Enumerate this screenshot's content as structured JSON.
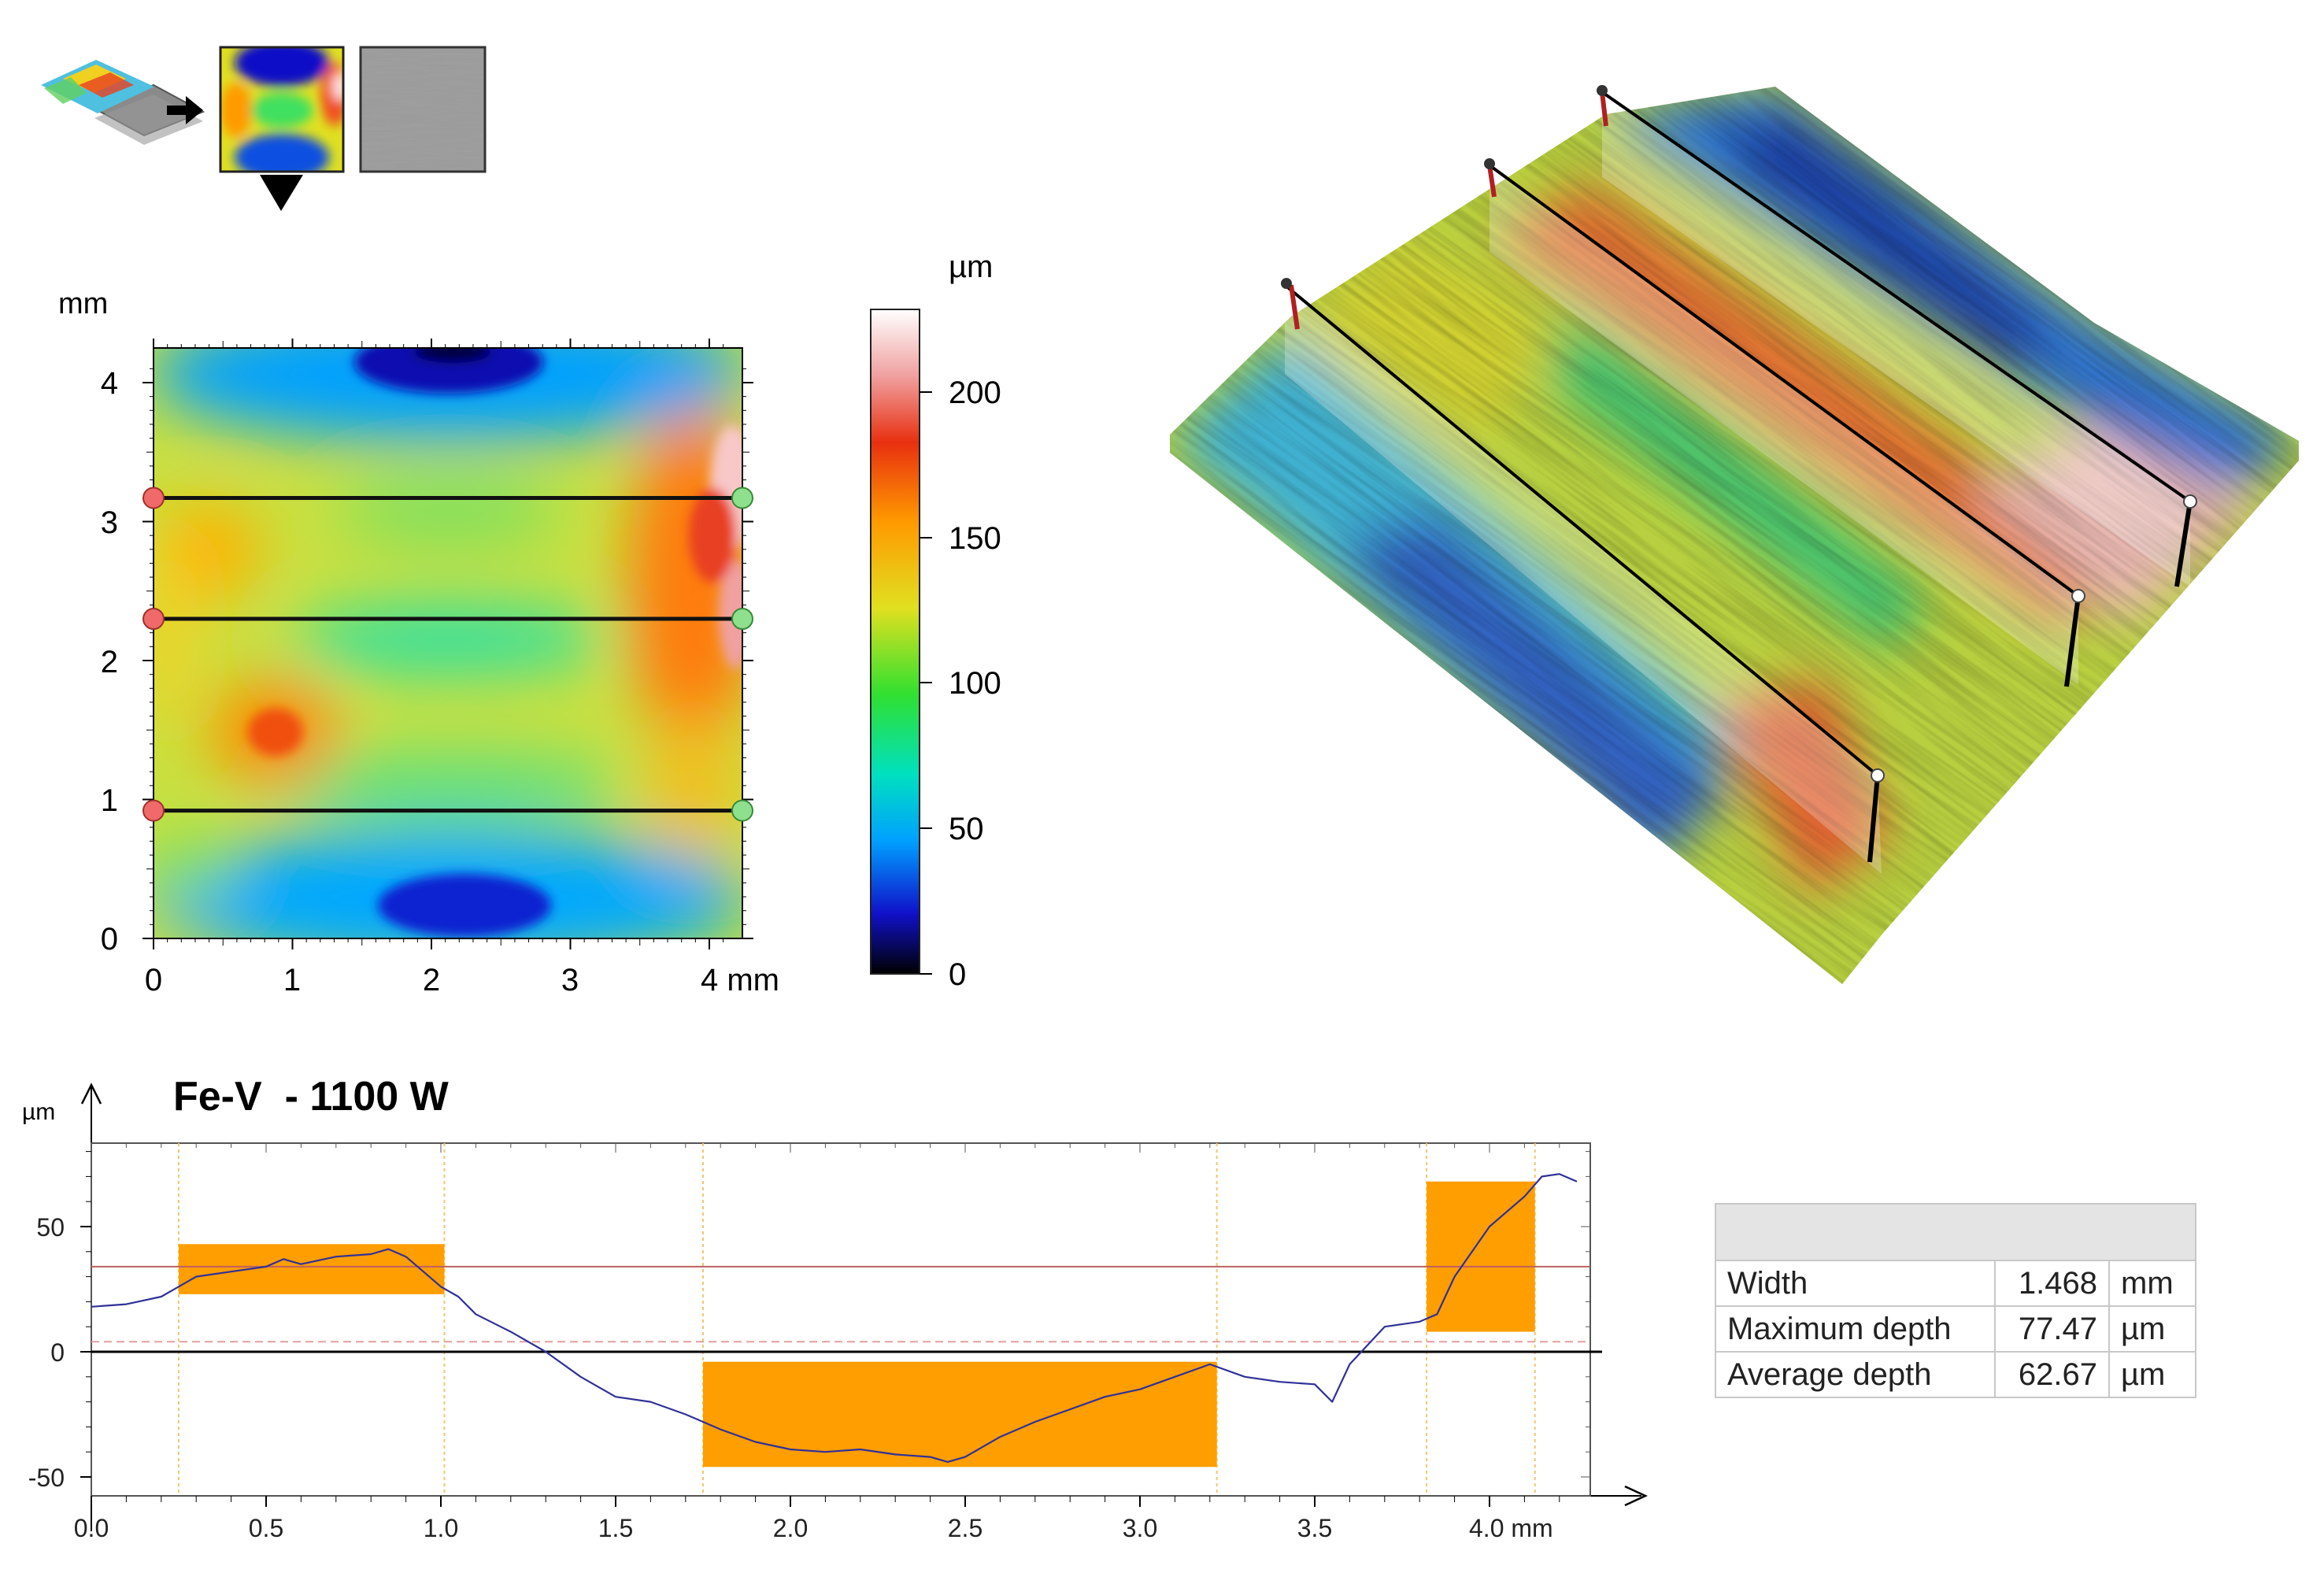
{
  "thumbnails": {
    "icons": [
      "surface-3d-layers-icon",
      "arrow-right-icon",
      "height-map-thumbnail",
      "grayscale-image-thumbnail",
      "triangle-down-icon"
    ]
  },
  "height_map": {
    "y_unit": "mm",
    "x_ticks": [
      "0",
      "1",
      "2",
      "3",
      "4 mm"
    ],
    "y_ticks": [
      "0",
      "1",
      "2",
      "3",
      "4"
    ],
    "profile_lines_mm": [
      0.92,
      2.3,
      3.17
    ]
  },
  "colorbar": {
    "unit": "µm",
    "ticks": [
      "0",
      "50",
      "100",
      "150",
      "200"
    ],
    "colors": [
      "#000000",
      "#1010c8",
      "#00a0ff",
      "#00e0c0",
      "#30e030",
      "#e0e020",
      "#ff9a00",
      "#e83010",
      "#f0a0a0",
      "#ffffff"
    ]
  },
  "surface_3d": {
    "icons": [
      "3d-surface-render",
      "profile-plane-icon"
    ]
  },
  "profile_chart": {
    "title": "Fe-V  - 1100 W",
    "y_unit": "µm",
    "x_tick_labels": [
      "0.0",
      "0.5",
      "1.0",
      "1.5",
      "2.0",
      "2.5",
      "3.0",
      "3.5",
      "4.0 mm"
    ],
    "y_tick_labels": [
      "-50",
      "0",
      "50"
    ]
  },
  "chart_data": {
    "type": "line",
    "title": "Fe-V  - 1100 W",
    "xlabel": "mm",
    "ylabel": "µm",
    "xlim": [
      0,
      4.25
    ],
    "ylim": [
      -55,
      85
    ],
    "grid": false,
    "series": [
      {
        "color": "#30309a",
        "x": [
          0.0,
          0.1,
          0.2,
          0.25,
          0.3,
          0.4,
          0.5,
          0.55,
          0.6,
          0.7,
          0.8,
          0.85,
          0.9,
          0.95,
          1.0,
          1.05,
          1.1,
          1.2,
          1.3,
          1.4,
          1.5,
          1.6,
          1.7,
          1.75,
          1.8,
          1.9,
          2.0,
          2.1,
          2.2,
          2.3,
          2.4,
          2.45,
          2.5,
          2.6,
          2.7,
          2.8,
          2.9,
          3.0,
          3.1,
          3.2,
          3.3,
          3.4,
          3.5,
          3.55,
          3.6,
          3.7,
          3.8,
          3.85,
          3.9,
          4.0,
          4.1,
          4.15,
          4.2,
          4.25
        ],
        "y": [
          18,
          19,
          22,
          26,
          30,
          32,
          34,
          37,
          35,
          38,
          39,
          41,
          38,
          32,
          26,
          22,
          15,
          8,
          0,
          -10,
          -18,
          -20,
          -25,
          -28,
          -31,
          -36,
          -39,
          -40,
          -39,
          -41,
          -42,
          -44,
          -42,
          -34,
          -28,
          -23,
          -18,
          -15,
          -10,
          -5,
          -10,
          -12,
          -13,
          -20,
          -5,
          10,
          12,
          15,
          30,
          50,
          62,
          70,
          71,
          68
        ]
      }
    ],
    "regions": [
      {
        "x0": 0.25,
        "x1": 1.01,
        "y0": 23,
        "y1": 43
      },
      {
        "x0": 1.75,
        "x1": 3.22,
        "y0": -46,
        "y1": -4
      },
      {
        "x0": 3.82,
        "x1": 4.13,
        "y0": 8,
        "y1": 68
      }
    ],
    "reference_lines": [
      {
        "y": 34,
        "style": "solid",
        "color": "#c06060"
      },
      {
        "y": 4,
        "style": "dashed",
        "color": "#e0a0a0"
      },
      {
        "y": 0,
        "style": "solid",
        "color": "#000000"
      }
    ],
    "vertical_guides": [
      0.25,
      1.01,
      1.75,
      3.22,
      3.82,
      4.13
    ]
  },
  "results_table": {
    "rows": [
      {
        "label": "Width",
        "value": "1.468",
        "unit": "mm"
      },
      {
        "label": "Maximum depth",
        "value": "77.47",
        "unit": "µm"
      },
      {
        "label": "Average depth",
        "value": "62.67",
        "unit": "µm"
      }
    ]
  }
}
